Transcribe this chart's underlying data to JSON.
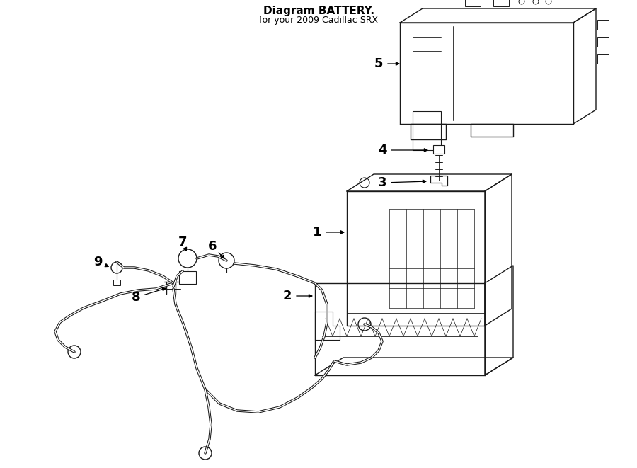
{
  "fig_width": 9.0,
  "fig_height": 6.61,
  "dpi": 100,
  "bg_color": "#ffffff",
  "lc": "#1a1a1a",
  "title": "Diagram BATTERY.",
  "subtitle": "for your 2009 Cadillac SRX",
  "lw": 1.0
}
